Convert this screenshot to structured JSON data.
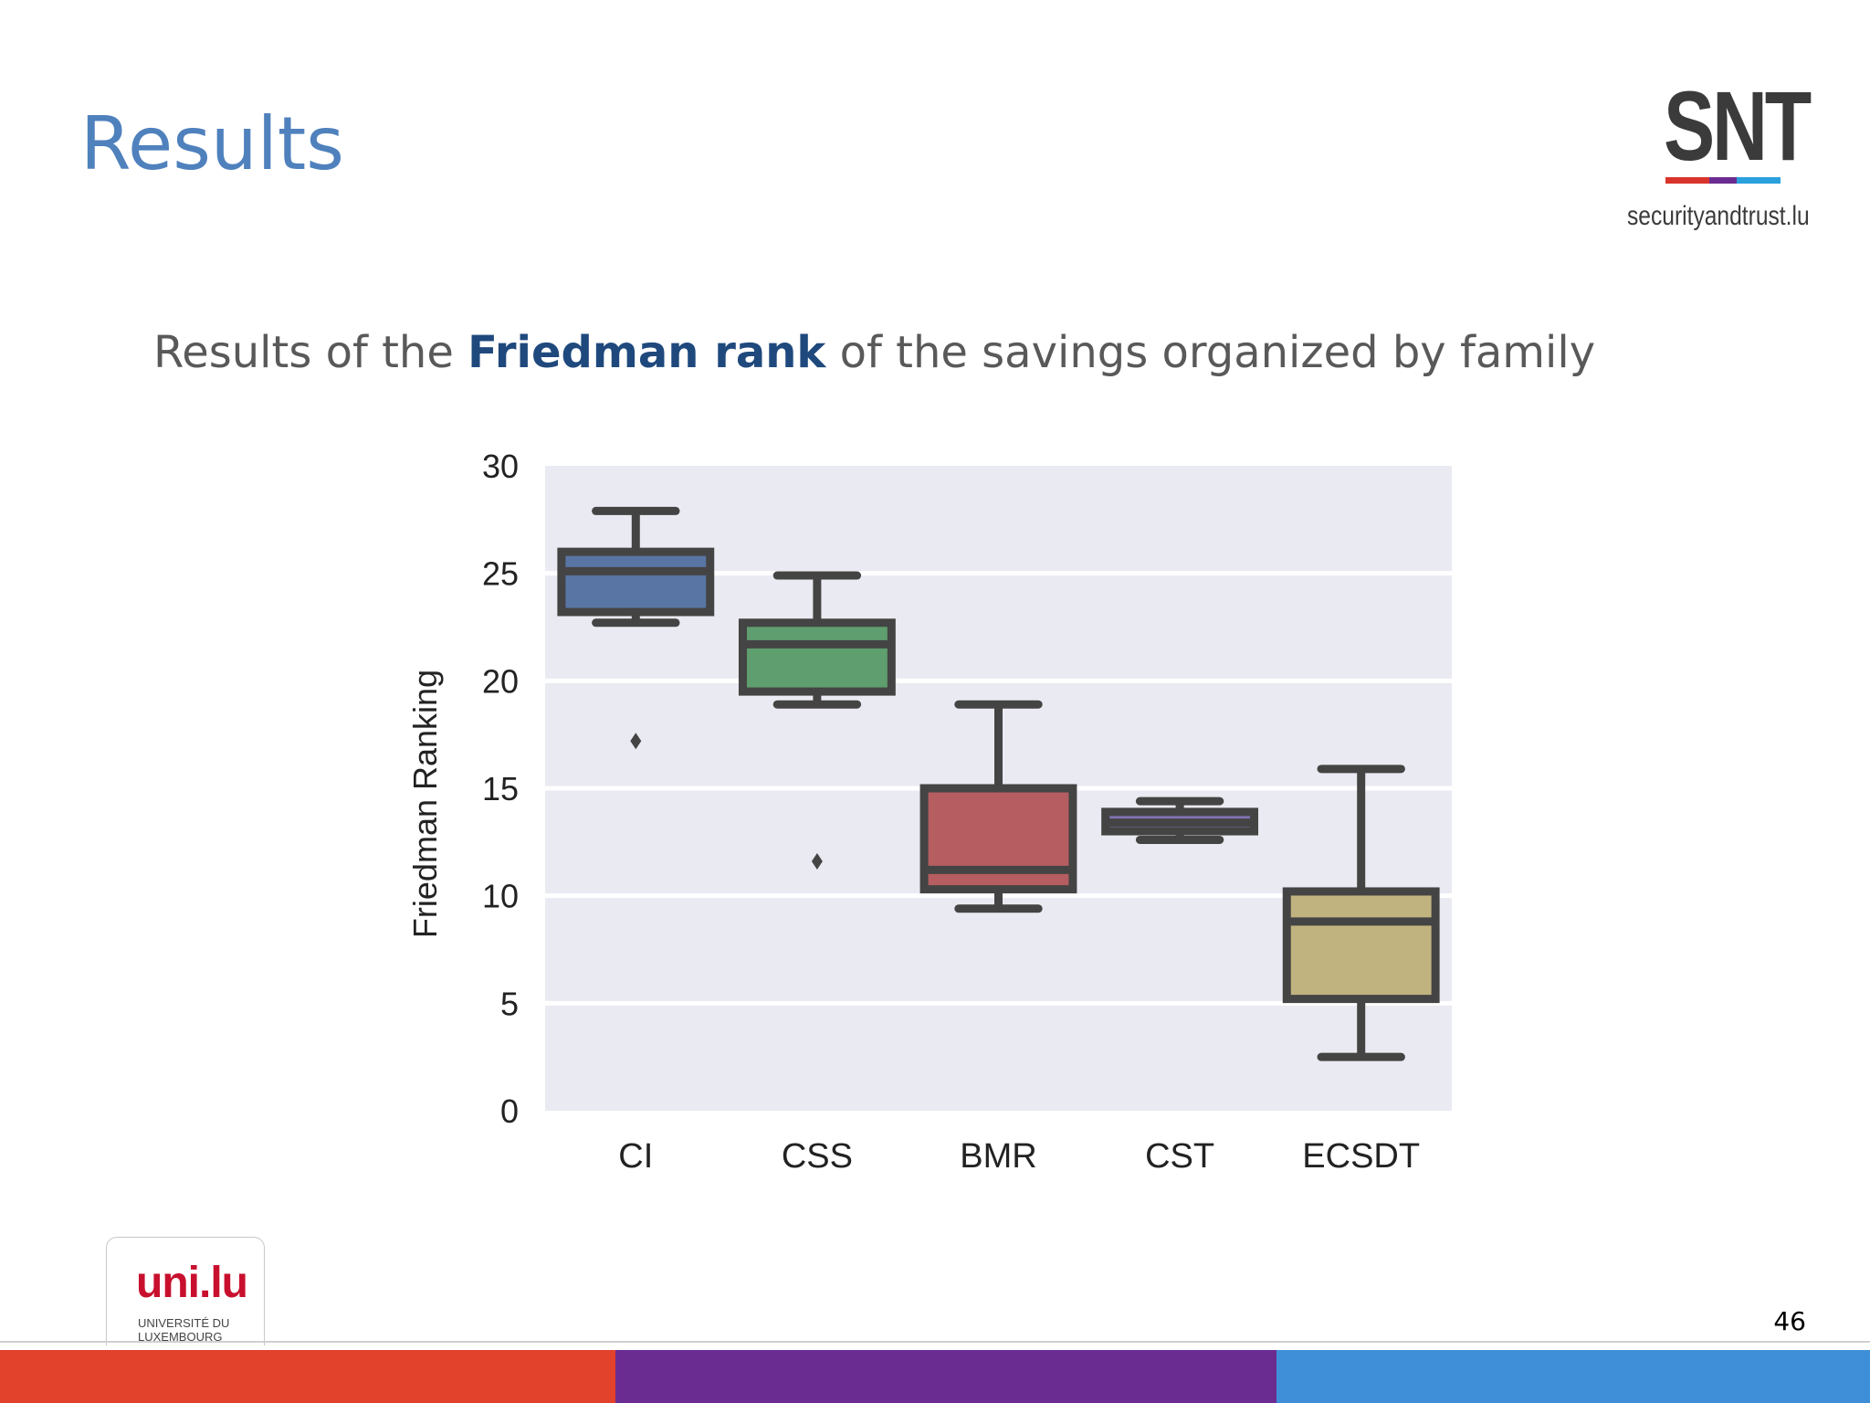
{
  "slide": {
    "title": "Results",
    "subtitle_pre": "Results of the ",
    "subtitle_highlight": "Friedman rank",
    "subtitle_post": " of the savings organized by family",
    "page_number": "46"
  },
  "logos": {
    "snt_mark": "SNT",
    "snt_url": "securityandtrust.lu",
    "uni_mark": "uni.lu",
    "uni_name_line1": "UNIVERSITÉ DU",
    "uni_name_line2": "LUXEMBOURG"
  },
  "colors": {
    "title": "#4f81bd",
    "highlight": "#1f497d",
    "footer_red": "#e2412b",
    "footer_purple": "#6b2c91",
    "footer_blue": "#3f8fd8",
    "snt_red": "#d9342b",
    "snt_purple": "#6b2c91",
    "snt_blue": "#2aa0dc",
    "uni_red": "#c8102e",
    "uni_blue": "#2aa0dc"
  },
  "chart_data": {
    "type": "box",
    "title": "",
    "xlabel": "",
    "ylabel": "Friedman Ranking",
    "ylim": [
      0,
      30
    ],
    "yticks": [
      0,
      5,
      10,
      15,
      20,
      25,
      30
    ],
    "grid": true,
    "categories": [
      "CI",
      "CSS",
      "BMR",
      "CST",
      "ECSDT"
    ],
    "boxes": [
      {
        "category": "CI",
        "whisker_low": 22.7,
        "q1": 23.2,
        "median": 25.1,
        "q3": 26.0,
        "whisker_high": 27.9,
        "outliers": [
          17.2
        ],
        "color": "#5875a4"
      },
      {
        "category": "CSS",
        "whisker_low": 18.9,
        "q1": 19.5,
        "median": 21.7,
        "q3": 22.7,
        "whisker_high": 24.9,
        "outliers": [
          11.6
        ],
        "color": "#5f9e6e"
      },
      {
        "category": "BMR",
        "whisker_low": 9.4,
        "q1": 10.3,
        "median": 11.2,
        "q3": 15.0,
        "whisker_high": 18.9,
        "outliers": [],
        "color": "#b55d60"
      },
      {
        "category": "CST",
        "whisker_low": 12.6,
        "q1": 13.0,
        "median": 13.4,
        "q3": 13.9,
        "whisker_high": 14.4,
        "outliers": [],
        "color": "#8172b2"
      },
      {
        "category": "ECSDT",
        "whisker_low": 2.5,
        "q1": 5.2,
        "median": 8.8,
        "q3": 10.2,
        "whisker_high": 15.9,
        "outliers": [],
        "color": "#c1b37f"
      }
    ]
  }
}
